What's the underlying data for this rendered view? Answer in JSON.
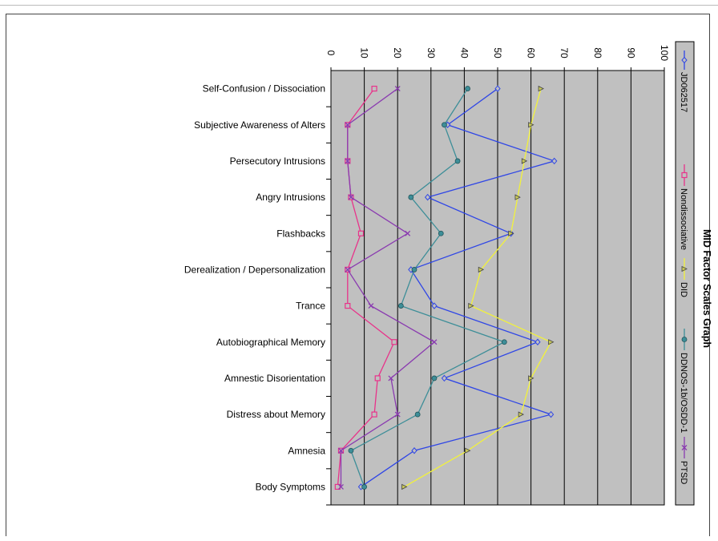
{
  "chart_data": {
    "type": "line",
    "orientation": "rotated-90-clockwise",
    "title": "MID Factor Scales Graph",
    "xlim": [
      0,
      100
    ],
    "ticks": [
      "0",
      "10",
      "20",
      "30",
      "40",
      "50",
      "60",
      "70",
      "80",
      "90",
      "100"
    ],
    "categories": [
      "Self-Confusion / Dissociation",
      "Subjective Awareness of Alters",
      "Persecutory Intrusions",
      "Angry Intrusions",
      "Flashbacks",
      "Derealization / Depersonalization",
      "Trance",
      "Autobiographical Memory",
      "Amnestic Disorientation",
      "Distress about Memory",
      "Amnesia",
      "Body Symptoms"
    ],
    "series": [
      {
        "name": "JD062517",
        "color": "#2f46e6",
        "marker": "diamond",
        "values": [
          50,
          35,
          67,
          29,
          54,
          24,
          31,
          62,
          34,
          66,
          25,
          9
        ]
      },
      {
        "name": "Nondissociative",
        "color": "#e8338a",
        "marker": "square",
        "values": [
          13,
          5,
          5,
          6,
          9,
          5,
          5,
          19,
          14,
          13,
          3,
          2
        ]
      },
      {
        "name": "DID",
        "color": "#f2f23a",
        "marker": "triangle",
        "values": [
          63,
          60,
          58,
          56,
          54,
          45,
          42,
          66,
          60,
          57,
          41,
          22
        ]
      },
      {
        "name": "DDNOS-1b/OSDD-1",
        "color": "#3d8e98",
        "marker": "circle",
        "values": [
          41,
          34,
          38,
          24,
          33,
          25,
          21,
          52,
          31,
          26,
          6,
          10
        ]
      },
      {
        "name": "PTSD",
        "color": "#8a3bb0",
        "marker": "x",
        "values": [
          20,
          5,
          5,
          6,
          23,
          5,
          12,
          31,
          18,
          20,
          3,
          3
        ]
      }
    ],
    "grid": true,
    "legend_position": "right"
  }
}
